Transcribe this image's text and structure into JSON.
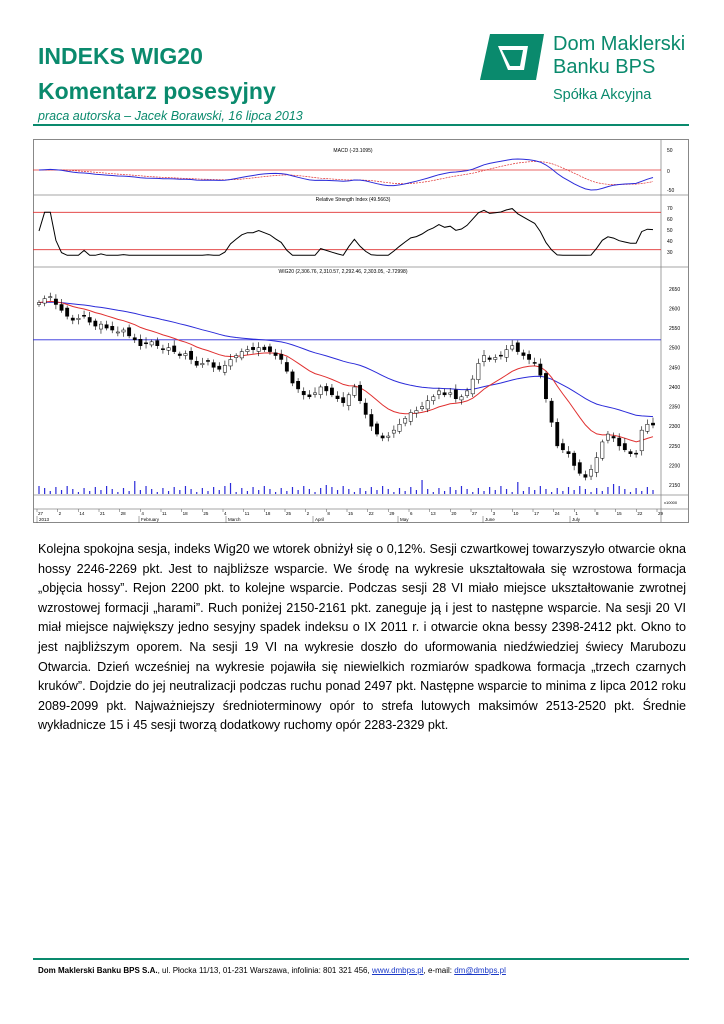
{
  "header": {
    "title_line1": "INDEKS WIG20",
    "title_line2": "Komentarz posesyjny",
    "subtitle": "praca autorska – Jacek Borawski, 16 lipca 2013"
  },
  "logo": {
    "name_line1": "Dom Maklerski",
    "name_line2": "Banku BPS",
    "tagline": "Spółka Akcyjna",
    "color": "#0a8a6d"
  },
  "chart": {
    "macd_label": "MACD (-23.1095)",
    "rsi_label": "Relative Strength Index (49.5663)",
    "price_label": "WIG20 (2,306.76, 2,310.57, 2,292.46, 2,303.05, -2.72998)",
    "macd_axis": [
      "50",
      "0",
      "-50"
    ],
    "rsi_axis": [
      "70",
      "60",
      "50",
      "40",
      "30"
    ],
    "price_axis": [
      "2650",
      "2600",
      "2550",
      "2500",
      "2450",
      "2400",
      "2350",
      "2300",
      "2250",
      "2200",
      "2150"
    ],
    "volume_axis": "x10000",
    "day_ticks": [
      "27",
      "2",
      "14",
      "21",
      "28",
      "4",
      "11",
      "18",
      "25",
      "4",
      "11",
      "18",
      "25",
      "2",
      "8",
      "15",
      "22",
      "29",
      "6",
      "13",
      "20",
      "27",
      "3",
      "10",
      "17",
      "24",
      "1",
      "8",
      "15",
      "22",
      "29"
    ],
    "months": [
      "2013",
      "February",
      "March",
      "April",
      "May",
      "June",
      "July"
    ],
    "colors": {
      "macd": "#2b2bd9",
      "signal": "#e03030",
      "ema15": "#e03030",
      "ema45": "#2b2bd9",
      "level": "#e03030"
    }
  },
  "chart_data": {
    "type": "candlestick",
    "title": "WIG20 (2,306.76, 2,310.57, 2,292.46, 2,303.05, -2.72998)",
    "ylim": [
      2130,
      2680
    ],
    "last": {
      "open": 2306.76,
      "high": 2310.57,
      "low": 2292.46,
      "close": 2303.05,
      "change": -2.72998
    },
    "closes": [
      2615,
      2625,
      2630,
      2610,
      2595,
      2580,
      2570,
      2575,
      2580,
      2565,
      2555,
      2560,
      2550,
      2545,
      2540,
      2545,
      2530,
      2520,
      2505,
      2510,
      2515,
      2505,
      2495,
      2500,
      2490,
      2480,
      2485,
      2470,
      2455,
      2460,
      2465,
      2450,
      2445,
      2455,
      2470,
      2480,
      2490,
      2495,
      2495,
      2500,
      2495,
      2490,
      2480,
      2470,
      2440,
      2410,
      2395,
      2380,
      2375,
      2385,
      2400,
      2390,
      2380,
      2370,
      2360,
      2380,
      2400,
      2365,
      2330,
      2300,
      2280,
      2270,
      2275,
      2290,
      2305,
      2320,
      2335,
      2340,
      2350,
      2365,
      2375,
      2390,
      2380,
      2385,
      2370,
      2375,
      2390,
      2420,
      2460,
      2480,
      2470,
      2475,
      2480,
      2495,
      2505,
      2490,
      2480,
      2470,
      2460,
      2430,
      2370,
      2310,
      2250,
      2240,
      2230,
      2200,
      2180,
      2170,
      2190,
      2220,
      2260,
      2280,
      2270,
      2250,
      2240,
      2230,
      2230,
      2290,
      2305,
      2303
    ],
    "ema15_label": "15",
    "ema45_label": "45",
    "horizontal_level": 2520,
    "rsi_levels": [
      70,
      30
    ],
    "macd_zero": 0
  },
  "body": {
    "text": "Kolejna spokojna sesja, indeks Wig20 we wtorek obniżył się o 0,12%. Sesji czwartkowej towarzyszyło otwarcie okna hossy 2246-2269 pkt. Jest to najbliższe wsparcie. We środę na wykresie ukształtowała się wzrostowa formacja „objęcia hossy”. Rejon 2200 pkt. to kolejne wsparcie. Podczas sesji 28 VI miało miejsce ukształtowanie zwrotnej wzrostowej formacji „harami”. Ruch poniżej 2150-2161 pkt. zaneguje ją i jest to następne wsparcie. Na sesji 20 VI miał miejsce największy jedno sesyjny spadek indeksu o IX 2011 r. i otwarcie okna bessy 2398-2412 pkt. Okno to jest najbliższym oporem. Na sesji 19 VI na wykresie doszło do uformowania niedźwiedziej świecy Marubozu Otwarcia. Dzień wcześniej na wykresie pojawiła się niewielkich rozmiarów spadkowa formacja „trzech czarnych kruków”. Dojdzie do jej neutralizacji podczas ruchu ponad 2497 pkt. Następne wsparcie to minima z lipca 2012 roku 2089-2099 pkt. Najważniejszy średnioterminowy opór to strefa lutowych maksimów 2513-2520 pkt. Średnie wykładnicze 15 i 45 sesji tworzą dodatkowy ruchomy opór 2283-2329 pkt."
  },
  "footer": {
    "company": "Dom Maklerski Banku BPS S.A.",
    "address": ", ul. Płocka 11/13, 01-231 Warszawa, infolinia: 801 321 456, ",
    "website": "www.dmbps.pl",
    "email_prefix": ", e-mail: ",
    "email": "dm@dmbps.pl"
  }
}
